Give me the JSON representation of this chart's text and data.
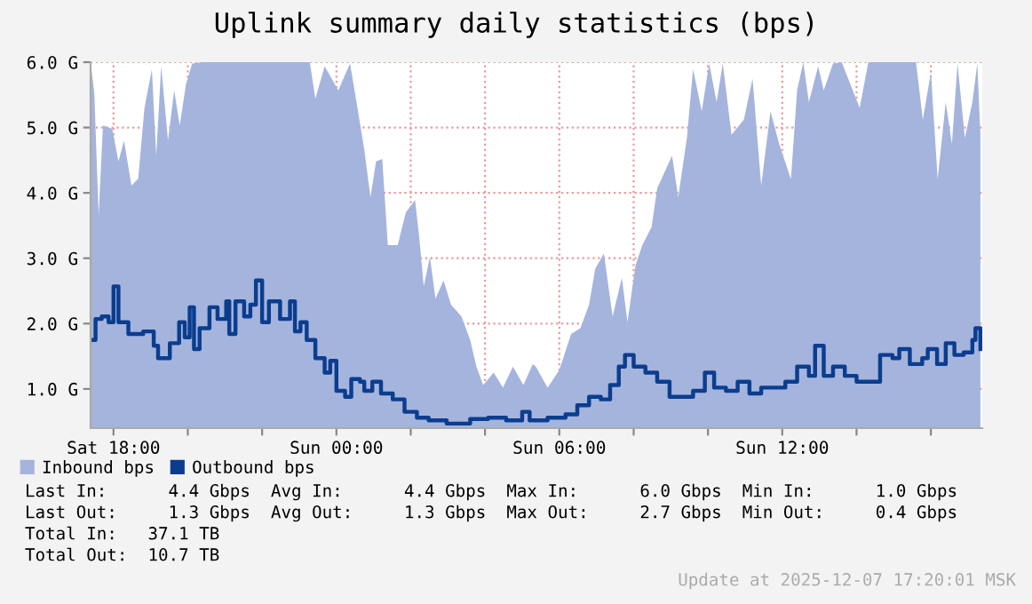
{
  "chart_data": {
    "type": "area",
    "title": "Uplink summary daily statistics (bps)",
    "xlim": [
      "2025-12-06T17:23",
      "2025-12-07T17:23"
    ],
    "xticks": [
      {
        "value": "2025-12-06T18:00",
        "label": "Sat 18:00"
      },
      {
        "value": "2025-12-06T20:00",
        "label": null
      },
      {
        "value": "2025-12-06T22:00",
        "label": null
      },
      {
        "value": "2025-12-07T00:00",
        "label": "Sun 00:00"
      },
      {
        "value": "2025-12-07T02:00",
        "label": null
      },
      {
        "value": "2025-12-07T04:00",
        "label": null
      },
      {
        "value": "2025-12-07T06:00",
        "label": "Sun 06:00"
      },
      {
        "value": "2025-12-07T08:00",
        "label": null
      },
      {
        "value": "2025-12-07T10:00",
        "label": null
      },
      {
        "value": "2025-12-07T12:00",
        "label": "Sun 12:00"
      },
      {
        "value": "2025-12-07T14:00",
        "label": null
      },
      {
        "value": "2025-12-07T16:00",
        "label": null
      }
    ],
    "ylim": [
      0.4,
      6.0
    ],
    "yticks": [
      {
        "value": 1,
        "label": "1.0 G"
      },
      {
        "value": 2,
        "label": "2.0 G"
      },
      {
        "value": 3,
        "label": "3.0 G"
      },
      {
        "value": 4,
        "label": "4.0 G"
      },
      {
        "value": 5,
        "label": "5.0 G"
      },
      {
        "value": 6,
        "label": "6.0 G"
      }
    ],
    "grid": true,
    "legend": "bottom left",
    "series": [
      {
        "name": "Inbound bps",
        "color": "#a4b4dc",
        "x": [
          "2025-12-06T17:23",
          "2025-12-06T17:29",
          "2025-12-06T17:36",
          "2025-12-06T17:43",
          "2025-12-06T17:58",
          "2025-12-06T18:08",
          "2025-12-06T18:17",
          "2025-12-06T18:29",
          "2025-12-06T18:40",
          "2025-12-06T18:50",
          "2025-12-06T19:02",
          "2025-12-06T19:09",
          "2025-12-06T19:17",
          "2025-12-06T19:28",
          "2025-12-06T19:38",
          "2025-12-06T19:47",
          "2025-12-06T19:57",
          "2025-12-06T20:07",
          "2025-12-06T20:24",
          "2025-12-06T23:17",
          "2025-12-06T23:26",
          "2025-12-06T23:41",
          "2025-12-07T00:03",
          "2025-12-07T00:22",
          "2025-12-07T00:34",
          "2025-12-07T00:45",
          "2025-12-07T00:55",
          "2025-12-07T01:04",
          "2025-12-07T01:14",
          "2025-12-07T01:23",
          "2025-12-07T01:39",
          "2025-12-07T01:52",
          "2025-12-07T02:07",
          "2025-12-07T02:14",
          "2025-12-07T02:21",
          "2025-12-07T02:31",
          "2025-12-07T02:40",
          "2025-12-07T02:53",
          "2025-12-07T03:05",
          "2025-12-07T03:22",
          "2025-12-07T03:36",
          "2025-12-07T03:46",
          "2025-12-07T03:57",
          "2025-12-07T04:14",
          "2025-12-07T04:29",
          "2025-12-07T04:45",
          "2025-12-07T05:02",
          "2025-12-07T05:17",
          "2025-12-07T05:22",
          "2025-12-07T05:41",
          "2025-12-07T06:00",
          "2025-12-07T06:19",
          "2025-12-07T06:34",
          "2025-12-07T06:48",
          "2025-12-07T06:58",
          "2025-12-07T07:12",
          "2025-12-07T07:26",
          "2025-12-07T07:41",
          "2025-12-07T07:50",
          "2025-12-07T08:03",
          "2025-12-07T08:14",
          "2025-12-07T08:29",
          "2025-12-07T08:38",
          "2025-12-07T08:51",
          "2025-12-07T09:02",
          "2025-12-07T09:12",
          "2025-12-07T09:26",
          "2025-12-07T09:36",
          "2025-12-07T09:50",
          "2025-12-07T10:02",
          "2025-12-07T10:14",
          "2025-12-07T10:24",
          "2025-12-07T10:38",
          "2025-12-07T10:58",
          "2025-12-07T11:12",
          "2025-12-07T11:26",
          "2025-12-07T11:41",
          "2025-12-07T11:55",
          "2025-12-07T12:14",
          "2025-12-07T12:24",
          "2025-12-07T12:34",
          "2025-12-07T12:43",
          "2025-12-07T12:58",
          "2025-12-07T13:07",
          "2025-12-07T13:22",
          "2025-12-07T13:36",
          "2025-12-07T14:05",
          "2025-12-07T14:19",
          "2025-12-07T15:36",
          "2025-12-07T15:47",
          "2025-12-07T16:00",
          "2025-12-07T16:11",
          "2025-12-07T16:24",
          "2025-12-07T16:34",
          "2025-12-07T16:43",
          "2025-12-07T16:55",
          "2025-12-07T17:07",
          "2025-12-07T17:15",
          "2025-12-07T17:20"
        ],
        "values": [
          6.0,
          5.53,
          3.66,
          5.03,
          4.98,
          4.48,
          4.8,
          4.11,
          4.22,
          5.3,
          5.89,
          4.57,
          5.94,
          4.8,
          5.57,
          5.03,
          5.66,
          5.98,
          6.0,
          6.0,
          5.44,
          5.94,
          5.57,
          5.98,
          5.3,
          4.66,
          3.93,
          4.48,
          4.52,
          3.2,
          3.2,
          3.7,
          3.89,
          3.3,
          2.57,
          3.02,
          2.38,
          2.66,
          2.29,
          2.11,
          1.75,
          1.34,
          1.06,
          1.25,
          1.02,
          1.34,
          1.06,
          1.38,
          1.34,
          1.02,
          1.29,
          1.84,
          1.93,
          2.29,
          2.84,
          3.07,
          2.11,
          2.7,
          2.02,
          2.89,
          3.2,
          3.48,
          4.07,
          4.34,
          4.57,
          3.93,
          4.84,
          5.89,
          5.25,
          5.98,
          5.39,
          5.98,
          4.89,
          5.12,
          5.75,
          4.11,
          5.25,
          4.75,
          4.21,
          5.57,
          6.0,
          5.39,
          5.94,
          5.57,
          5.98,
          6.0,
          5.3,
          6.0,
          6.0,
          5.12,
          5.84,
          4.21,
          5.39,
          4.75,
          5.98,
          4.84,
          5.39,
          5.98,
          4.89
        ]
      },
      {
        "name": "Outbound bps",
        "type": "step",
        "color": "#0b3d8f",
        "x": [
          "2025-12-06T17:23",
          "2025-12-06T17:31",
          "2025-12-06T17:41",
          "2025-12-06T17:52",
          "2025-12-06T18:00",
          "2025-12-06T18:08",
          "2025-12-06T18:24",
          "2025-12-06T18:48",
          "2025-12-06T19:05",
          "2025-12-06T19:12",
          "2025-12-06T19:31",
          "2025-12-06T19:46",
          "2025-12-06T19:55",
          "2025-12-06T20:03",
          "2025-12-06T20:10",
          "2025-12-06T20:19",
          "2025-12-06T20:35",
          "2025-12-06T20:48",
          "2025-12-06T21:02",
          "2025-12-06T21:07",
          "2025-12-06T21:17",
          "2025-12-06T21:31",
          "2025-12-06T21:41",
          "2025-12-06T21:50",
          "2025-12-06T22:00",
          "2025-12-06T22:11",
          "2025-12-06T22:29",
          "2025-12-06T22:45",
          "2025-12-06T22:53",
          "2025-12-06T23:02",
          "2025-12-06T23:12",
          "2025-12-06T23:26",
          "2025-12-06T23:41",
          "2025-12-06T23:50",
          "2025-12-07T00:00",
          "2025-12-07T00:14",
          "2025-12-07T00:24",
          "2025-12-07T00:38",
          "2025-12-07T00:45",
          "2025-12-07T00:58",
          "2025-12-07T01:12",
          "2025-12-07T01:31",
          "2025-12-07T01:50",
          "2025-12-07T02:10",
          "2025-12-07T02:29",
          "2025-12-07T02:58",
          "2025-12-07T03:36",
          "2025-12-07T04:05",
          "2025-12-07T04:34",
          "2025-12-07T05:00",
          "2025-12-07T05:12",
          "2025-12-07T05:41",
          "2025-12-07T06:10",
          "2025-12-07T06:29",
          "2025-12-07T06:48",
          "2025-12-07T07:07",
          "2025-12-07T07:22",
          "2025-12-07T07:36",
          "2025-12-07T07:46",
          "2025-12-07T08:00",
          "2025-12-07T08:19",
          "2025-12-07T08:38",
          "2025-12-07T08:58",
          "2025-12-07T09:17",
          "2025-12-07T09:36",
          "2025-12-07T09:55",
          "2025-12-07T10:10",
          "2025-12-07T10:29",
          "2025-12-07T10:48",
          "2025-12-07T11:07",
          "2025-12-07T11:26",
          "2025-12-07T11:46",
          "2025-12-07T12:05",
          "2025-12-07T12:24",
          "2025-12-07T12:43",
          "2025-12-07T12:53",
          "2025-12-07T13:07",
          "2025-12-07T13:22",
          "2025-12-07T13:41",
          "2025-12-07T14:00",
          "2025-12-07T14:24",
          "2025-12-07T14:38",
          "2025-12-07T14:58",
          "2025-12-07T15:09",
          "2025-12-07T15:26",
          "2025-12-07T15:46",
          "2025-12-07T15:55",
          "2025-12-07T16:10",
          "2025-12-07T16:24",
          "2025-12-07T16:38",
          "2025-12-07T16:53",
          "2025-12-07T17:07",
          "2025-12-07T17:12",
          "2025-12-07T17:20"
        ],
        "values": [
          1.75,
          2.07,
          2.11,
          2.02,
          2.57,
          2.02,
          1.84,
          1.88,
          1.66,
          1.47,
          1.7,
          2.02,
          1.79,
          2.25,
          1.61,
          1.93,
          2.25,
          2.07,
          2.34,
          1.84,
          2.34,
          2.11,
          2.29,
          2.66,
          2.02,
          2.34,
          2.07,
          2.34,
          1.88,
          2.02,
          1.75,
          1.47,
          1.25,
          1.43,
          0.97,
          0.88,
          1.15,
          1.11,
          0.97,
          1.11,
          0.93,
          0.84,
          0.65,
          0.56,
          0.52,
          0.47,
          0.54,
          0.56,
          0.52,
          0.65,
          0.52,
          0.56,
          0.61,
          0.75,
          0.88,
          0.84,
          1.06,
          1.34,
          1.52,
          1.34,
          1.25,
          1.11,
          0.88,
          0.88,
          0.97,
          1.25,
          1.02,
          0.97,
          1.11,
          0.93,
          1.02,
          1.02,
          1.11,
          1.34,
          1.2,
          1.66,
          1.2,
          1.34,
          1.2,
          1.11,
          1.11,
          1.52,
          1.47,
          1.61,
          1.38,
          1.47,
          1.61,
          1.38,
          1.7,
          1.52,
          1.56,
          1.75,
          1.93,
          1.61
        ]
      }
    ],
    "annotations": [
      "Last In:      4.4 Gbps  Avg In:      4.4 Gbps  Max In:      6.0 Gbps  Min In:      1.0 Gbps",
      "Last Out:     1.3 Gbps  Avg Out:     1.3 Gbps  Max Out:     2.7 Gbps  Min Out:     0.4 Gbps",
      "Total In:   37.1 TB",
      "Total Out:  10.7 TB",
      "Update at 2025-12-07 17:20:01 MSK"
    ]
  }
}
